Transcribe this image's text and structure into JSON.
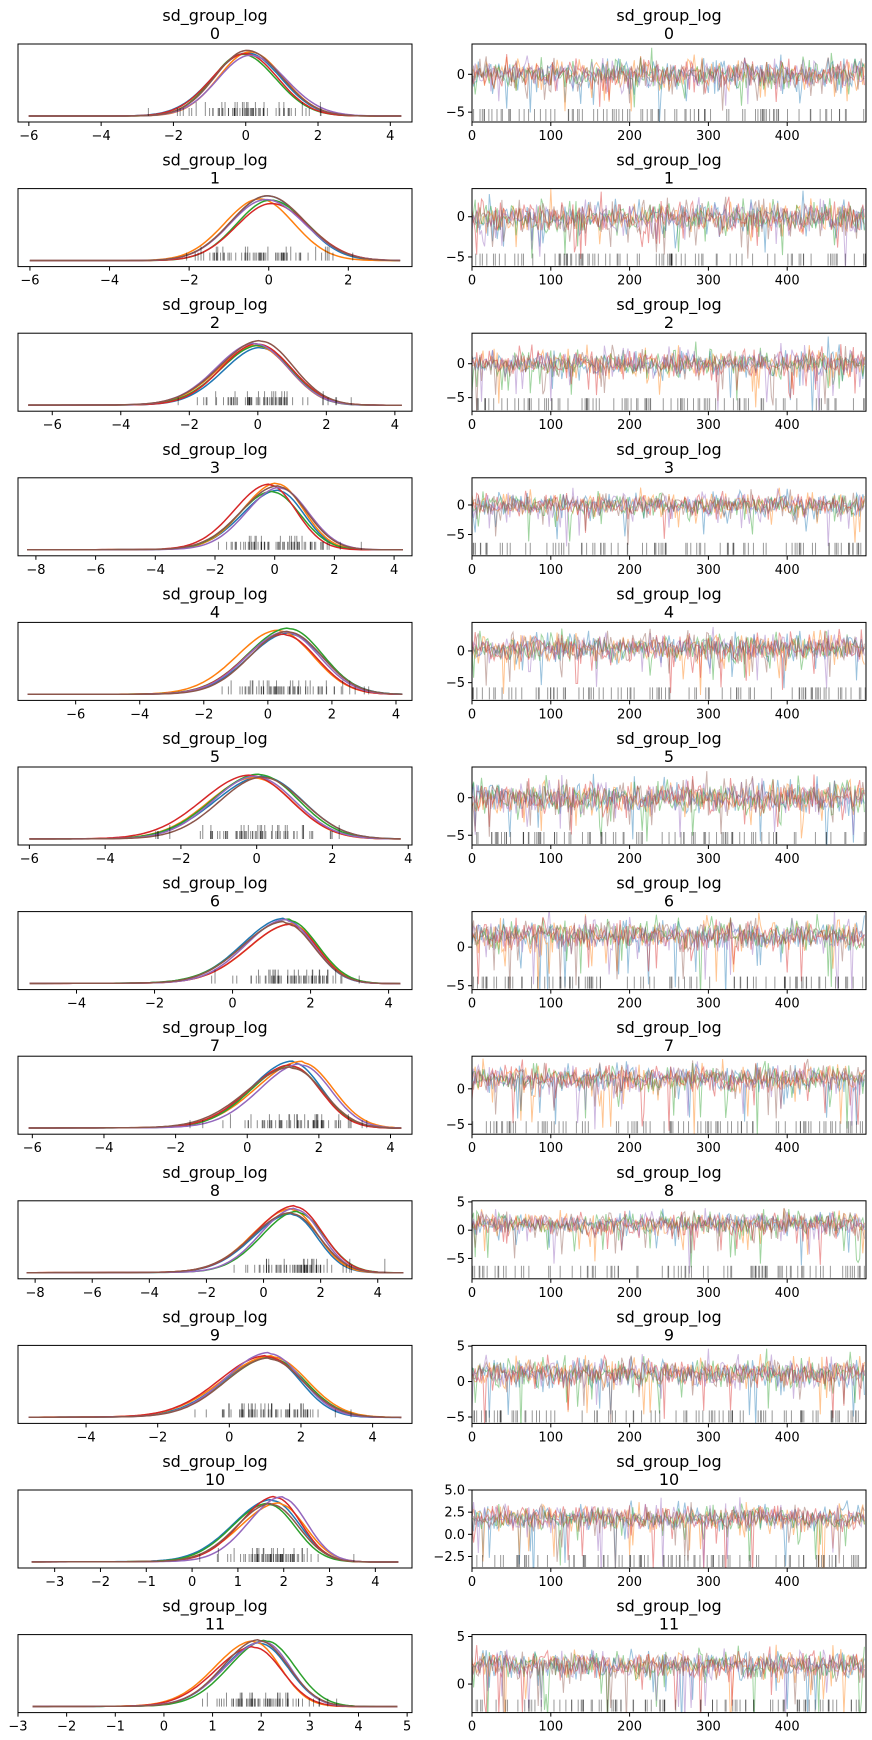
{
  "chart_data": [
    {
      "type": "line",
      "title": "sd_group_log",
      "subtitle": "0",
      "xlim": [
        -6.3,
        4.6
      ],
      "xticks": [
        -6,
        -4,
        -2,
        0,
        2,
        4
      ],
      "center": 0.0,
      "spread": 0.9,
      "skew": 0.0
    },
    {
      "type": "line",
      "title": "sd_group_log",
      "subtitle": "0",
      "xlim": [
        0,
        500
      ],
      "ylim": [
        -6.3,
        4.0
      ],
      "xticks": [
        0,
        100,
        200,
        300,
        400
      ],
      "yticks": [
        -5,
        0
      ],
      "center": 0.0,
      "noise": 1.0,
      "skew": 0.0
    },
    {
      "type": "line",
      "title": "sd_group_log",
      "subtitle": "1",
      "xlim": [
        -6.3,
        3.6
      ],
      "xticks": [
        -6,
        -4,
        -2,
        0,
        2
      ],
      "center": -0.1,
      "spread": 0.9,
      "skew": 0.0
    },
    {
      "type": "line",
      "title": "sd_group_log",
      "subtitle": "1",
      "xlim": [
        0,
        500
      ],
      "ylim": [
        -6.2,
        3.5
      ],
      "xticks": [
        0,
        100,
        200,
        300,
        400
      ],
      "yticks": [
        -5,
        0
      ],
      "center": -0.1,
      "noise": 1.0,
      "skew": 0.0
    },
    {
      "type": "line",
      "title": "sd_group_log",
      "subtitle": "2",
      "xlim": [
        -7.0,
        4.5
      ],
      "xticks": [
        -6,
        -4,
        -2,
        0,
        2,
        4
      ],
      "center": 0.0,
      "spread": 0.9,
      "skew": 0.3
    },
    {
      "type": "line",
      "title": "sd_group_log",
      "subtitle": "2",
      "xlim": [
        0,
        500
      ],
      "ylim": [
        -7.0,
        4.5
      ],
      "xticks": [
        0,
        100,
        200,
        300,
        400
      ],
      "yticks": [
        -5,
        0
      ],
      "center": 0.0,
      "noise": 1.0,
      "skew": 0.3
    },
    {
      "type": "line",
      "title": "sd_group_log",
      "subtitle": "3",
      "xlim": [
        -8.6,
        4.6
      ],
      "xticks": [
        -8,
        -6,
        -4,
        -2,
        0,
        2,
        4
      ],
      "center": 0.0,
      "spread": 0.9,
      "skew": 0.3
    },
    {
      "type": "line",
      "title": "sd_group_log",
      "subtitle": "3",
      "xlim": [
        0,
        500
      ],
      "ylim": [
        -8.6,
        4.6
      ],
      "xticks": [
        0,
        100,
        200,
        300,
        400
      ],
      "yticks": [
        -5,
        0
      ],
      "center": 0.0,
      "noise": 1.0,
      "skew": 0.3
    },
    {
      "type": "line",
      "title": "sd_group_log",
      "subtitle": "4",
      "xlim": [
        -7.8,
        4.5
      ],
      "xticks": [
        -6,
        -4,
        -2,
        0,
        2,
        4
      ],
      "center": 0.5,
      "spread": 1.0,
      "skew": 0.3
    },
    {
      "type": "line",
      "title": "sd_group_log",
      "subtitle": "4",
      "xlim": [
        0,
        500
      ],
      "ylim": [
        -7.8,
        4.5
      ],
      "xticks": [
        0,
        100,
        200,
        300,
        400
      ],
      "yticks": [
        -5,
        0
      ],
      "center": 0.5,
      "noise": 1.1,
      "skew": 0.3
    },
    {
      "type": "line",
      "title": "sd_group_log",
      "subtitle": "5",
      "xlim": [
        -6.3,
        4.1
      ],
      "xticks": [
        -6,
        -4,
        -2,
        0,
        2,
        4
      ],
      "center": 0.0,
      "spread": 1.0,
      "skew": 0.2
    },
    {
      "type": "line",
      "title": "sd_group_log",
      "subtitle": "5",
      "xlim": [
        0,
        500
      ],
      "ylim": [
        -6.3,
        4.1
      ],
      "xticks": [
        0,
        100,
        200,
        300,
        400
      ],
      "yticks": [
        -5,
        0
      ],
      "center": 0.0,
      "noise": 1.1,
      "skew": 0.2
    },
    {
      "type": "line",
      "title": "sd_group_log",
      "subtitle": "6",
      "xlim": [
        -5.5,
        4.6
      ],
      "xticks": [
        -4,
        -2,
        0,
        2,
        4
      ],
      "center": 1.5,
      "spread": 0.7,
      "skew": 0.6
    },
    {
      "type": "line",
      "title": "sd_group_log",
      "subtitle": "6",
      "xlim": [
        0,
        500
      ],
      "ylim": [
        -5.5,
        4.6
      ],
      "xticks": [
        0,
        100,
        200,
        300,
        400
      ],
      "yticks": [
        -5,
        0
      ],
      "center": 1.5,
      "noise": 0.9,
      "skew": 0.6
    },
    {
      "type": "line",
      "title": "sd_group_log",
      "subtitle": "7",
      "xlim": [
        -6.4,
        4.6
      ],
      "xticks": [
        -6,
        -4,
        -2,
        0,
        2,
        4
      ],
      "center": 1.4,
      "spread": 0.8,
      "skew": 0.6
    },
    {
      "type": "line",
      "title": "sd_group_log",
      "subtitle": "7",
      "xlim": [
        0,
        500
      ],
      "ylim": [
        -6.4,
        4.6
      ],
      "xticks": [
        0,
        100,
        200,
        300,
        400
      ],
      "yticks": [
        -5,
        0
      ],
      "center": 1.4,
      "noise": 0.9,
      "skew": 0.6
    },
    {
      "type": "line",
      "title": "sd_group_log",
      "subtitle": "8",
      "xlim": [
        -8.6,
        5.2
      ],
      "xticks": [
        -8,
        -6,
        -4,
        -2,
        0,
        2,
        4
      ],
      "center": 1.1,
      "spread": 0.9,
      "skew": 0.5
    },
    {
      "type": "line",
      "title": "sd_group_log",
      "subtitle": "8",
      "xlim": [
        0,
        500
      ],
      "ylim": [
        -8.6,
        5.2
      ],
      "xticks": [
        0,
        100,
        200,
        300,
        400
      ],
      "yticks": [
        -5,
        0,
        5
      ],
      "center": 1.1,
      "noise": 1.0,
      "skew": 0.5
    },
    {
      "type": "line",
      "title": "sd_group_log",
      "subtitle": "9",
      "xlim": [
        -5.9,
        5.1
      ],
      "xticks": [
        -4,
        -2,
        0,
        2,
        4
      ],
      "center": 1.2,
      "spread": 0.9,
      "skew": 0.5
    },
    {
      "type": "line",
      "title": "sd_group_log",
      "subtitle": "9",
      "xlim": [
        0,
        500
      ],
      "ylim": [
        -5.9,
        5.1
      ],
      "xticks": [
        0,
        100,
        200,
        300,
        400
      ],
      "yticks": [
        -5,
        0,
        5
      ],
      "center": 1.2,
      "noise": 1.0,
      "skew": 0.5
    },
    {
      "type": "line",
      "title": "sd_group_log",
      "subtitle": "10",
      "xlim": [
        -3.8,
        4.8
      ],
      "xticks": [
        -3,
        -2,
        -1,
        0,
        1,
        2,
        3,
        4
      ],
      "center": 1.8,
      "spread": 0.55,
      "skew": 0.5
    },
    {
      "type": "line",
      "title": "sd_group_log",
      "subtitle": "10",
      "xlim": [
        0,
        500
      ],
      "ylim": [
        -3.8,
        5.0
      ],
      "xticks": [
        0,
        100,
        200,
        300,
        400
      ],
      "yticks": [
        -2.5,
        0.0,
        2.5,
        5.0
      ],
      "ytick_labels": [
        "−2.5",
        "0.0",
        "2.5",
        "5.0"
      ],
      "center": 1.8,
      "noise": 0.7,
      "skew": 0.5
    },
    {
      "type": "line",
      "title": "sd_group_log",
      "subtitle": "11",
      "xlim": [
        -3.0,
        5.1
      ],
      "xticks": [
        -3,
        -2,
        -1,
        0,
        1,
        2,
        3,
        4,
        5
      ],
      "center": 2.0,
      "spread": 0.55,
      "skew": 0.4
    },
    {
      "type": "line",
      "title": "sd_group_log",
      "subtitle": "11",
      "xlim": [
        0,
        500
      ],
      "ylim": [
        -3.0,
        5.2
      ],
      "xticks": [
        0,
        100,
        200,
        300,
        400
      ],
      "yticks": [
        0,
        5
      ],
      "center": 2.0,
      "noise": 0.7,
      "skew": 0.4
    }
  ],
  "colors": [
    "#1f77b4",
    "#ff7f0e",
    "#2ca02c",
    "#d62728",
    "#9467bd",
    "#8c564b"
  ]
}
